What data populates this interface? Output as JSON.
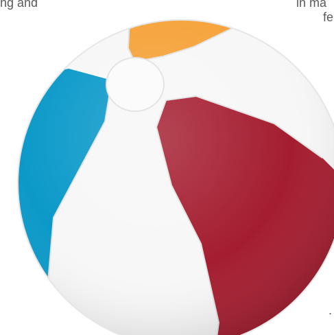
{
  "image": {
    "kind": "beach-ball",
    "background": "#ffffff",
    "cropped_text_color": "#5a5a5a"
  },
  "text_fragments": {
    "top_left": "ng and",
    "top_right_line1": "in ma",
    "top_right_line2": "fe",
    "bottom_right_mark": "."
  },
  "ball": {
    "panel_order_clockwise_from_top": [
      "orange",
      "white",
      "red",
      "white",
      "blue",
      "white"
    ],
    "colors": {
      "orange": "#f6a33b",
      "red": "#a41d2f",
      "blue": "#0b99c9",
      "white": "#f7f7f7",
      "cap": "#fbfbfb"
    }
  }
}
